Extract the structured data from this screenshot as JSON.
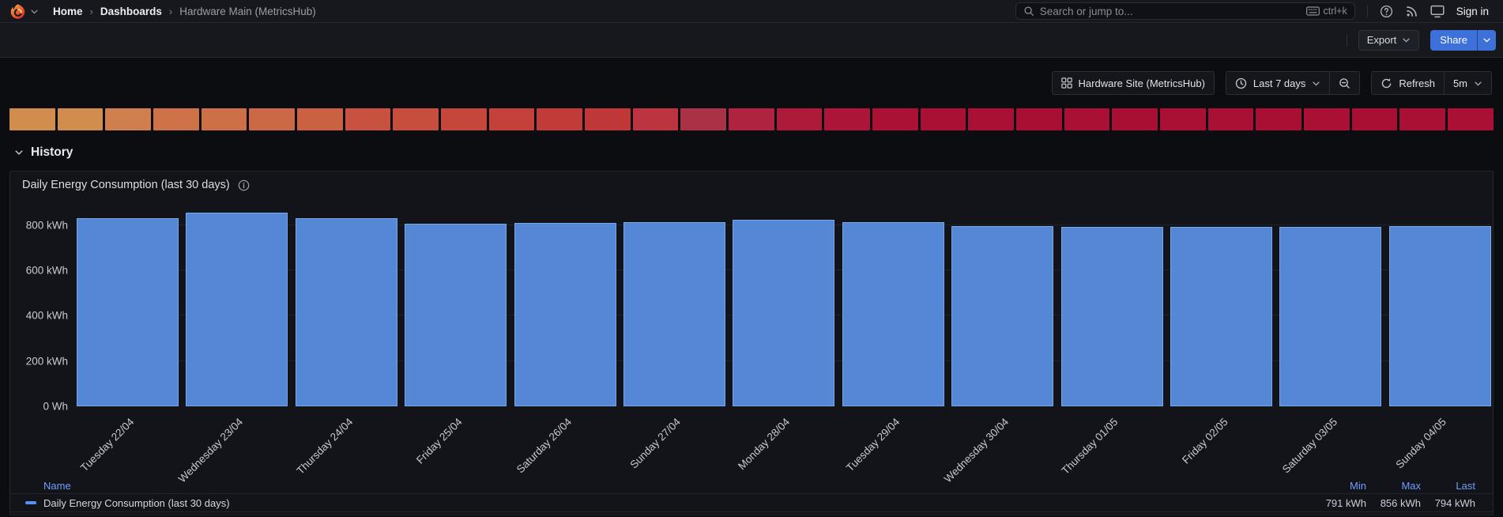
{
  "nav": {
    "breadcrumb_separator": "›",
    "breadcrumb": [
      {
        "label": "Home"
      },
      {
        "label": "Dashboards"
      },
      {
        "label": "Hardware Main (MetricsHub)"
      }
    ],
    "search": {
      "placeholder": "Search or jump to...",
      "shortcut": "ctrl+k"
    },
    "sign_in": "Sign in"
  },
  "actions": {
    "export_label": "Export",
    "share_label": "Share"
  },
  "controls": {
    "datasource_label": "Hardware Site (MetricsHub)",
    "time_range": "Last 7 days",
    "refresh_label": "Refresh",
    "refresh_interval": "5m"
  },
  "heatmap_strip": {
    "colors": [
      "#d18d4e",
      "#d18d4e",
      "#cf7f4e",
      "#cd7249",
      "#cd6f47",
      "#cb6845",
      "#ca6143",
      "#c8523f",
      "#c74e3d",
      "#c5473b",
      "#c3413a",
      "#c13c39",
      "#bf3737",
      "#bc3440",
      "#aa3146",
      "#b02340",
      "#ae1b3a",
      "#ac1537",
      "#ab1135",
      "#aa1034",
      "#aa1034",
      "#a90f33",
      "#aa1034",
      "#a90f33",
      "#aa1034",
      "#aa1034",
      "#a90f33",
      "#aa1034",
      "#a90f33",
      "#aa1034",
      "#aa1034"
    ]
  },
  "section": {
    "title": "History"
  },
  "panel": {
    "title": "Daily Energy Consumption (last 30 days)",
    "legend": {
      "name_header": "Name",
      "min_header": "Min",
      "max_header": "Max",
      "last_header": "Last",
      "series_label": "Daily Energy Consumption (last 30 days)",
      "min": "791 kWh",
      "max": "856 kWh",
      "last": "794 kWh",
      "swatch_color": "#5794f2"
    }
  },
  "chart_data": {
    "type": "bar",
    "title": "Daily Energy Consumption (last 30 days)",
    "categories": [
      "Tuesday 22/04",
      "Wednesday 23/04",
      "Thursday 24/04",
      "Friday 25/04",
      "Saturday 26/04",
      "Sunday 27/04",
      "Monday 28/04",
      "Tuesday 29/04",
      "Wednesday 30/04",
      "Thursday 01/05",
      "Friday 02/05",
      "Saturday 03/05",
      "Sunday 04/05"
    ],
    "values": [
      831,
      856,
      830,
      806,
      810,
      813,
      824,
      812,
      795,
      793,
      791,
      793,
      794
    ],
    "unit": "kWh",
    "xlabel": "",
    "ylabel": "",
    "ylim": [
      0,
      900
    ],
    "yticks": [
      {
        "value": 0,
        "label": "0 Wh"
      },
      {
        "value": 200,
        "label": "200 kWh"
      },
      {
        "value": 400,
        "label": "400 kWh"
      },
      {
        "value": 600,
        "label": "600 kWh"
      },
      {
        "value": 800,
        "label": "800 kWh"
      }
    ],
    "grid": "horizontal",
    "legend_position": "bottom",
    "bar_color": "#5587d7",
    "bar_border_color": "#78a8ec",
    "stats": {
      "min": "791 kWh",
      "max": "856 kWh",
      "last": "794 kWh"
    }
  }
}
